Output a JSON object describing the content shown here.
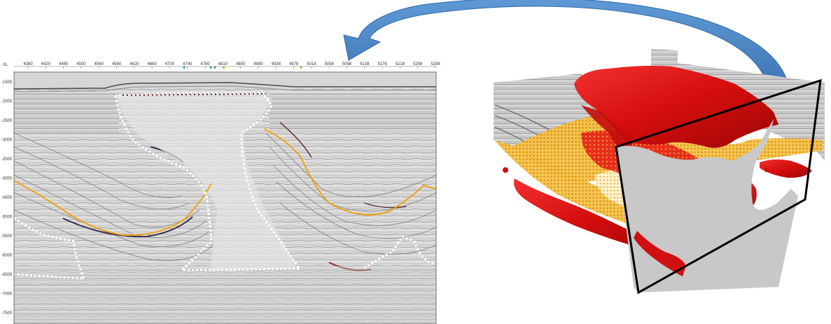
{
  "seismic_section": {
    "x_axis_name": "XL",
    "x_ticks": [
      "4380",
      "4420",
      "4460",
      "4500",
      "4540",
      "4580",
      "4620",
      "4660",
      "4700",
      "4740",
      "4780",
      "4810",
      "4850",
      "4890",
      "4938",
      "4978",
      "5018",
      "5058",
      "5098",
      "5138",
      "5178",
      "5218",
      "5258",
      "5298"
    ],
    "y_ticks": [
      "-1500",
      "-2000",
      "-2500",
      "-3000",
      "-3500",
      "-4000",
      "-4500",
      "-5000",
      "-5500",
      "-6000",
      "-6500",
      "-7000",
      "-7500"
    ],
    "colors": {
      "background": "#d7d7d7",
      "salt_outline": "#ffffff",
      "horizon": "#f0a000",
      "trough": "#3a3050",
      "peak": "#8a2a20"
    }
  },
  "arrow": {
    "color": "#4a86c4",
    "edge_color": "#2f6aa8"
  },
  "volume_3d": {
    "colors": {
      "salt_body": "#e01010",
      "salt_dark": "#a00a0a",
      "horizon_surface": "#f2a81a",
      "horizon_light": "#fbe2a0",
      "slice_face": "#c8c8c8",
      "frame": "#000000"
    }
  }
}
